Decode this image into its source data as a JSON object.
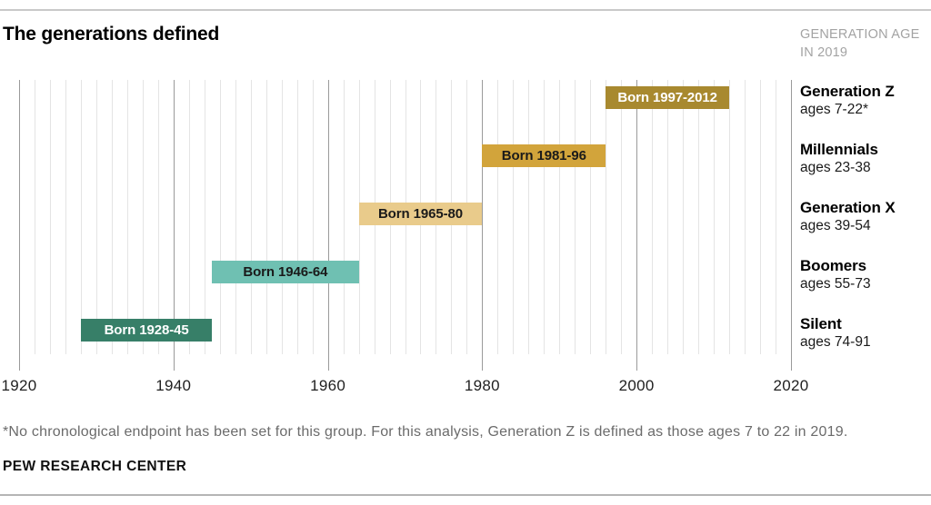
{
  "header": {
    "title": "The generations defined",
    "note_line1": "GENERATION AGE",
    "note_line2": "IN 2019"
  },
  "chart_data": {
    "type": "bar",
    "orientation": "horizontal-timeline",
    "x_axis": {
      "min": 1920,
      "max": 2020,
      "tick_step": 20,
      "gridline_step": 2,
      "ticks": [
        "1920",
        "1940",
        "1960",
        "1980",
        "2000",
        "2020"
      ]
    },
    "grid": "on",
    "generations": [
      {
        "name": "Generation Z",
        "ages": "ages 7-22*",
        "born_label": "Born 1997-2012",
        "born_start": 1997,
        "born_end": 2012,
        "bar_start": 1996,
        "bar_end": 2012,
        "color": "#a8892f",
        "text_color": "#ffffff"
      },
      {
        "name": "Millennials",
        "ages": "ages 23-38",
        "born_label": "Born 1981-96",
        "born_start": 1981,
        "born_end": 1996,
        "bar_start": 1980,
        "bar_end": 1996,
        "color": "#d2a43b",
        "text_color": "#1a1a1a"
      },
      {
        "name": "Generation X",
        "ages": "ages 39-54",
        "born_label": "Born 1965-80",
        "born_start": 1965,
        "born_end": 1980,
        "bar_start": 1964,
        "bar_end": 1980,
        "color": "#e9cb8b",
        "text_color": "#1a1a1a"
      },
      {
        "name": "Boomers",
        "ages": "ages 55-73",
        "born_label": "Born 1946-64",
        "born_start": 1946,
        "born_end": 1964,
        "bar_start": 1945,
        "bar_end": 1964,
        "color": "#6fc0b2",
        "text_color": "#1a1a1a"
      },
      {
        "name": "Silent",
        "ages": "ages 74-91",
        "born_label": "Born 1928-45",
        "born_start": 1928,
        "born_end": 1945,
        "bar_start": 1928,
        "bar_end": 1945,
        "color": "#377f68",
        "text_color": "#ffffff"
      }
    ]
  },
  "footer": {
    "footnote": "*No chronological endpoint has been set for this group. For this analysis, Generation Z is defined as those ages 7 to 22 in 2019.",
    "source": "PEW RESEARCH CENTER"
  }
}
